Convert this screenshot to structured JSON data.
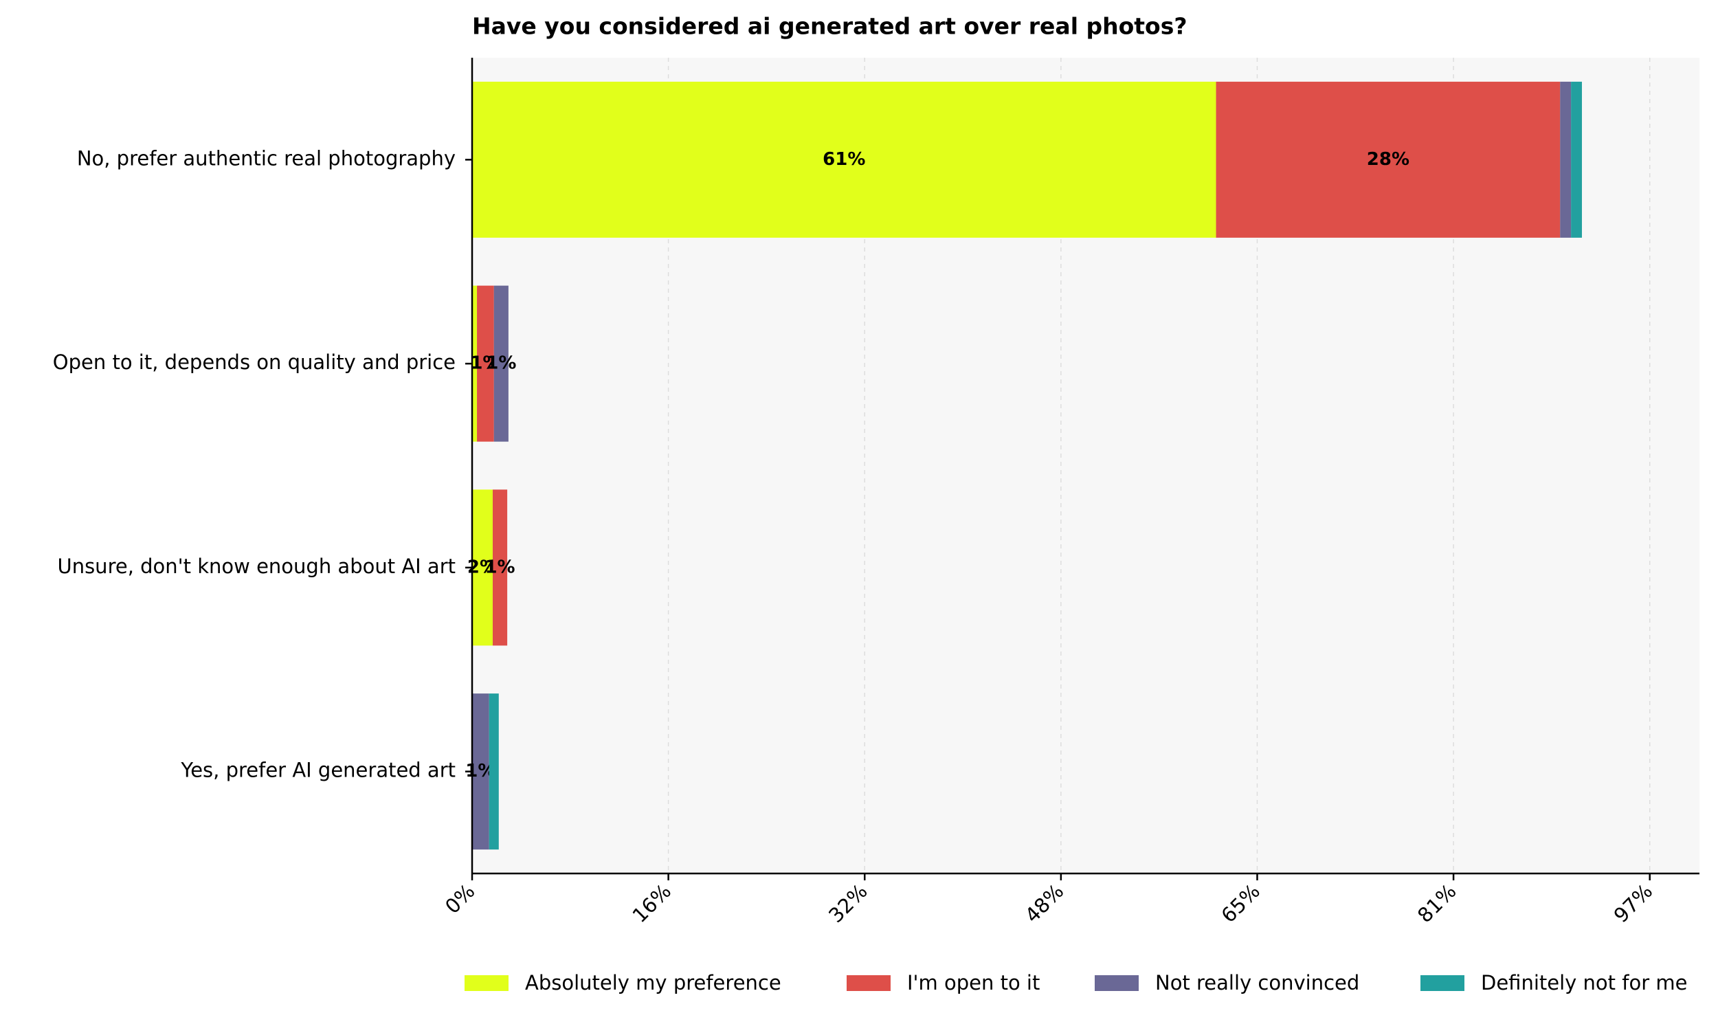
{
  "chart_data": {
    "type": "barh_stacked",
    "title": "Have you considered ai generated art over real photos?",
    "categories": [
      "No, prefer authentic real photography",
      "Open to it, depends on quality and price",
      "Unsure, don't know enough about AI art",
      "Yes, prefer AI generated art"
    ],
    "series": [
      {
        "name": "Absolutely my preference",
        "color": "#e1ff1b",
        "values": [
          61.4,
          0.4,
          1.7,
          0
        ],
        "value_labels": [
          "61%",
          null,
          "2%",
          null
        ]
      },
      {
        "name": "I'm open to it",
        "color": "#de4f49",
        "values": [
          28.4,
          1.4,
          1.2,
          0
        ],
        "value_labels": [
          "28%",
          "1%",
          "1%",
          null
        ]
      },
      {
        "name": "Not really convinced",
        "color": "#6a6896",
        "values": [
          0.9,
          1.2,
          0,
          1.4
        ],
        "value_labels": [
          null,
          "1%",
          null,
          "1%"
        ]
      },
      {
        "name": "Definitely not for me",
        "color": "#22a09f",
        "values": [
          0.9,
          0,
          0,
          0.8
        ],
        "value_labels": [
          null,
          null,
          null,
          null
        ]
      }
    ],
    "xlim": [
      0,
      101.3
    ],
    "xticks": [
      {
        "value": 0,
        "label": "0%"
      },
      {
        "value": 16.2,
        "label": "16%"
      },
      {
        "value": 32.4,
        "label": "32%"
      },
      {
        "value": 48.6,
        "label": "48%"
      },
      {
        "value": 64.8,
        "label": "65%"
      },
      {
        "value": 81,
        "label": "81%"
      },
      {
        "value": 97.2,
        "label": "97%"
      }
    ],
    "grid": true,
    "legend": "bottom"
  }
}
